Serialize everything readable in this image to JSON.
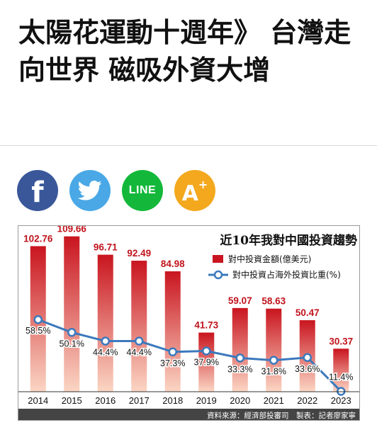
{
  "article": {
    "title": "太陽花運動十週年》 台灣走向世界 磁吸外資大增"
  },
  "share": {
    "facebook_label": "f",
    "line_label": "LINE",
    "font_label": "A",
    "font_sup": "+"
  },
  "colors": {
    "facebook": "#3a579a",
    "twitter": "#4aa8e6",
    "line": "#13b83a",
    "font": "#f3a81e",
    "bar_top": "#c9151f",
    "bar_bottom": "#fbd6c4",
    "line_series": "#3b79bd",
    "bar_label": "#c0141c",
    "footer_bg": "#444444"
  },
  "chart_data": {
    "type": "bar+line",
    "title": "近10年我對中國投資趨勢",
    "categories": [
      "2014",
      "2015",
      "2016",
      "2017",
      "2018",
      "2019",
      "2020",
      "2021",
      "2022",
      "2023"
    ],
    "series": [
      {
        "name": "對中投資金額(億美元)",
        "type": "bar",
        "values": [
          102.76,
          109.66,
          96.71,
          92.49,
          84.98,
          41.73,
          59.07,
          58.63,
          50.47,
          30.37
        ],
        "labels": [
          "102.76",
          "109.66",
          "96.71",
          "92.49",
          "84.98",
          "41.73",
          "59.07",
          "58.63",
          "50.47",
          "30.37"
        ]
      },
      {
        "name": "對中投資占海外投資比重(%)",
        "type": "line",
        "values": [
          58.5,
          50.1,
          44.4,
          44.4,
          37.3,
          37.9,
          33.3,
          31.8,
          33.6,
          11.4
        ],
        "labels": [
          "58.5%",
          "50.1%",
          "44.4%",
          "44.4%",
          "37.3%",
          "37.9%",
          "33.3%",
          "31.8%",
          "33.6%",
          "11.4%"
        ]
      }
    ],
    "legend_position": "top-right",
    "grid": false,
    "source": "資料來源：經濟部投審司　製表：記者廖家寧"
  }
}
